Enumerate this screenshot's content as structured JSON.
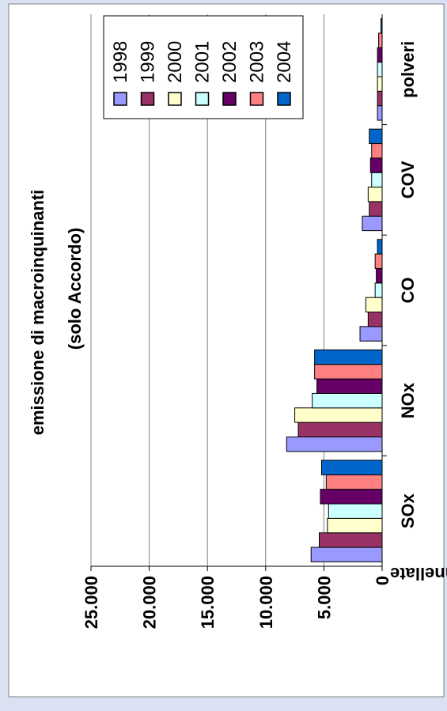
{
  "colors": {
    "background": "#d9e1f2",
    "panel": "#ffffff",
    "panel_border": "#808080",
    "gridline": "#808080",
    "axis": "#000000",
    "bar_stroke": "#000000"
  },
  "chart_data": {
    "type": "bar",
    "orientation": "horizontal-rotated",
    "title": "emissione di macroinquinanti",
    "subtitle": "(solo Accordo)",
    "ylabel": "tonnellate",
    "xlabel": "",
    "categories": [
      "SOx",
      "NOx",
      "CO",
      "COV",
      "polveri"
    ],
    "ylim": [
      0,
      25000
    ],
    "yticks": [
      0,
      5000,
      10000,
      15000,
      20000,
      25000
    ],
    "ytick_labels": [
      "0",
      "5.000",
      "10.000",
      "15.000",
      "20.000",
      "25.000"
    ],
    "grid": true,
    "legend_position": "top-right",
    "series": [
      {
        "name": "1998",
        "color": "#9999ff",
        "values": [
          6100,
          8200,
          1900,
          1700,
          400
        ]
      },
      {
        "name": "1999",
        "color": "#993366",
        "values": [
          5400,
          7200,
          1200,
          1100,
          400
        ]
      },
      {
        "name": "2000",
        "color": "#ffffcc",
        "values": [
          4700,
          7500,
          1400,
          1200,
          400
        ]
      },
      {
        "name": "2001",
        "color": "#ccffff",
        "values": [
          4600,
          6000,
          600,
          900,
          400
        ]
      },
      {
        "name": "2002",
        "color": "#660066",
        "values": [
          5300,
          5600,
          500,
          1000,
          400
        ]
      },
      {
        "name": "2003",
        "color": "#ff8080",
        "values": [
          4800,
          5800,
          600,
          900,
          300
        ]
      },
      {
        "name": "2004",
        "color": "#0066cc",
        "values": [
          5200,
          5800,
          400,
          1100,
          100
        ]
      }
    ]
  }
}
